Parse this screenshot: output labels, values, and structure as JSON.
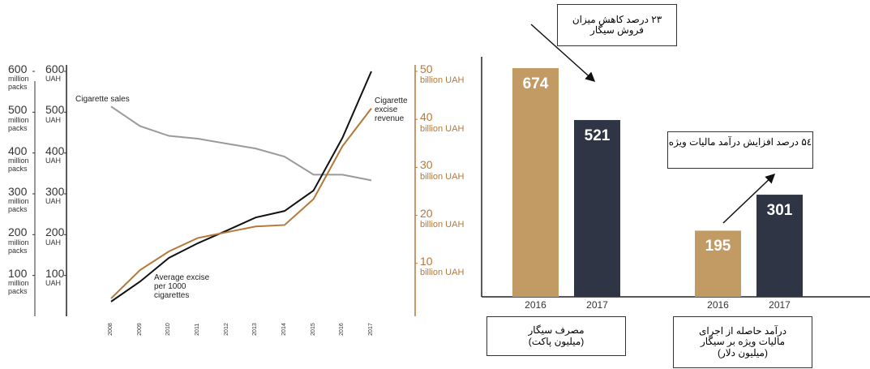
{
  "chart_data": [
    {
      "type": "line",
      "x": [
        "2008",
        "2009",
        "2010",
        "2011",
        "2012",
        "2013",
        "2014",
        "2015",
        "2016",
        "2017"
      ],
      "series": [
        {
          "name": "Cigarette sales",
          "color": "#9a9a9a",
          "axis": "y",
          "values": [
            514,
            466,
            442,
            435,
            423,
            411,
            391,
            347,
            347,
            333
          ]
        },
        {
          "name": "Average excise\nper 1000\ncigarettes",
          "color": "#111111",
          "axis": "y",
          "values": [
            36,
            85,
            143,
            179,
            210,
            242,
            258,
            308,
            437,
            600
          ]
        },
        {
          "name": "Cigarette\nexcise\nrevenue",
          "color": "#b5783a",
          "axis": "y2",
          "values": [
            2.7,
            8.6,
            12.5,
            15.3,
            16.5,
            17.7,
            18.0,
            23.4,
            34.4,
            42.3
          ]
        }
      ],
      "ylim": [
        0,
        600
      ],
      "yticks": [
        {
          "value": 100,
          "label": "100\nmillion\npacks"
        },
        {
          "value": 200,
          "label": "200\nmillion\npacks"
        },
        {
          "value": 300,
          "label": "300\nmillion\npacks"
        },
        {
          "value": 400,
          "label": "400\nmillion\npacks"
        },
        {
          "value": 500,
          "label": "500\nmillion\npacks"
        },
        {
          "value": 600,
          "label": "600\nmillion\npacks"
        }
      ],
      "y_uah_ticks": [
        {
          "value": 100,
          "label": "100\nUAH"
        },
        {
          "value": 200,
          "label": "200\nUAH"
        },
        {
          "value": 300,
          "label": "300\nUAH"
        },
        {
          "value": 400,
          "label": "400\nUAH"
        },
        {
          "value": 500,
          "label": "500\nUAH"
        },
        {
          "value": 600,
          "label": "600\nUAH"
        }
      ],
      "y2lim": [
        0,
        50
      ],
      "y2ticks": [
        {
          "value": 10,
          "label": "10\nbillion UAH"
        },
        {
          "value": 20,
          "label": "20\nbillion UAH"
        },
        {
          "value": 30,
          "label": "30\nbillion UAH"
        },
        {
          "value": 40,
          "label": "40\nbillion UAH"
        },
        {
          "value": 50,
          "label": "50\nbillion UAH"
        }
      ]
    },
    {
      "type": "bar",
      "categories": [
        "مصرف سیگار\n(میلیون پاکت)",
        "درآمد حاصله از اجرای\nمالیات ویژه بر سیگار\n(میلیون دلار)"
      ],
      "series": [
        {
          "name": "2016",
          "color": "#c29a64",
          "values": [
            674,
            195
          ]
        },
        {
          "name": "2017",
          "color": "#2f3545",
          "values": [
            521,
            301
          ]
        }
      ],
      "annotations": [
        "۲۳ درصد کاهش میزان\nفروش سیگار",
        "۵٤ درصد افزایش درآمد مالیات ویژه"
      ]
    }
  ]
}
